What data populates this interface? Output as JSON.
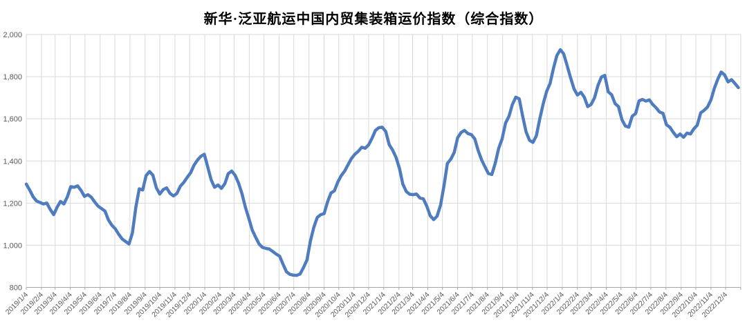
{
  "title": "新华·泛亚航运中国内贸集装箱运价指数（综合指数）",
  "colors": {
    "line": "#4E7CBE",
    "gridline": "#D9D9D9",
    "tick": "#A6A6A6",
    "axis_label": "#595959",
    "title_text": "#000000"
  },
  "chart_data": {
    "type": "line",
    "title": "新华·泛亚航运中国内贸集装箱运价指数（综合指数）",
    "xlabel": "",
    "ylabel": "",
    "ylim": [
      800,
      2000
    ],
    "grid": true,
    "legend": "none",
    "y_ticks": [
      800,
      1000,
      1200,
      1400,
      1600,
      1800,
      2000
    ],
    "y_tick_labels": [
      "800",
      "1,000",
      "1,200",
      "1,400",
      "1,600",
      "1,800",
      "2,000"
    ],
    "x_tick_labels": [
      "2019/1/4",
      "2019/2/4",
      "2019/3/4",
      "2019/4/4",
      "2019/5/4",
      "2019/6/4",
      "2019/7/4",
      "2019/8/4",
      "2019/9/4",
      "2019/10/4",
      "2019/11/4",
      "2019/12/4",
      "2020/1/4",
      "2020/2/4",
      "2020/3/4",
      "2020/4/4",
      "2020/5/4",
      "2020/6/4",
      "2020/7/4",
      "2020/8/4",
      "2020/9/4",
      "2020/10/4",
      "2020/11/4",
      "2020/12/4",
      "2021/1/4",
      "2021/2/4",
      "2021/3/4",
      "2021/4/4",
      "2021/5/4",
      "2021/6/4",
      "2021/7/4",
      "2021/8/4",
      "2021/9/4",
      "2021/10/4",
      "2021/11/4",
      "2021/12/4",
      "2022/1/4",
      "2022/2/4",
      "2022/3/4",
      "2022/4/4",
      "2022/5/4",
      "2022/6/4",
      "2022/7/4",
      "2022/8/4",
      "2022/9/4",
      "2022/10/4",
      "2022/11/4",
      "2022/12/4"
    ],
    "x_axis": {
      "min_date": "2019-01-04",
      "max_date": "2023-01-04",
      "tick_day": 4
    },
    "series": [
      {
        "start_date": "2019-01-04",
        "interval_days": 7,
        "values": [
          1290,
          1262,
          1230,
          1210,
          1203,
          1196,
          1200,
          1170,
          1145,
          1180,
          1208,
          1196,
          1230,
          1278,
          1275,
          1282,
          1260,
          1232,
          1240,
          1228,
          1205,
          1185,
          1174,
          1162,
          1120,
          1095,
          1078,
          1052,
          1030,
          1018,
          1006,
          1058,
          1180,
          1268,
          1262,
          1330,
          1350,
          1332,
          1272,
          1243,
          1264,
          1272,
          1246,
          1234,
          1246,
          1280,
          1298,
          1322,
          1344,
          1380,
          1404,
          1422,
          1432,
          1372,
          1310,
          1275,
          1286,
          1270,
          1292,
          1340,
          1352,
          1332,
          1295,
          1245,
          1180,
          1128,
          1072,
          1038,
          1006,
          990,
          985,
          982,
          970,
          958,
          948,
          910,
          874,
          862,
          858,
          857,
          864,
          895,
          930,
          1020,
          1085,
          1132,
          1145,
          1150,
          1205,
          1248,
          1258,
          1300,
          1330,
          1352,
          1382,
          1412,
          1432,
          1446,
          1465,
          1460,
          1476,
          1508,
          1545,
          1558,
          1560,
          1540,
          1478,
          1452,
          1418,
          1365,
          1290,
          1255,
          1242,
          1240,
          1243,
          1224,
          1220,
          1185,
          1140,
          1122,
          1138,
          1190,
          1280,
          1388,
          1408,
          1440,
          1510,
          1535,
          1545,
          1530,
          1525,
          1505,
          1450,
          1405,
          1372,
          1340,
          1336,
          1390,
          1460,
          1505,
          1580,
          1612,
          1668,
          1703,
          1695,
          1612,
          1538,
          1498,
          1488,
          1520,
          1600,
          1672,
          1730,
          1768,
          1840,
          1900,
          1928,
          1908,
          1852,
          1795,
          1742,
          1713,
          1726,
          1703,
          1658,
          1668,
          1700,
          1758,
          1798,
          1806,
          1728,
          1714,
          1672,
          1658,
          1596,
          1566,
          1560,
          1612,
          1625,
          1685,
          1692,
          1684,
          1690,
          1668,
          1652,
          1632,
          1626,
          1572,
          1560,
          1536,
          1515,
          1528,
          1512,
          1532,
          1528,
          1552,
          1570,
          1628,
          1640,
          1656,
          1690,
          1745,
          1788,
          1822,
          1808,
          1775,
          1786,
          1768,
          1748
        ]
      }
    ]
  }
}
